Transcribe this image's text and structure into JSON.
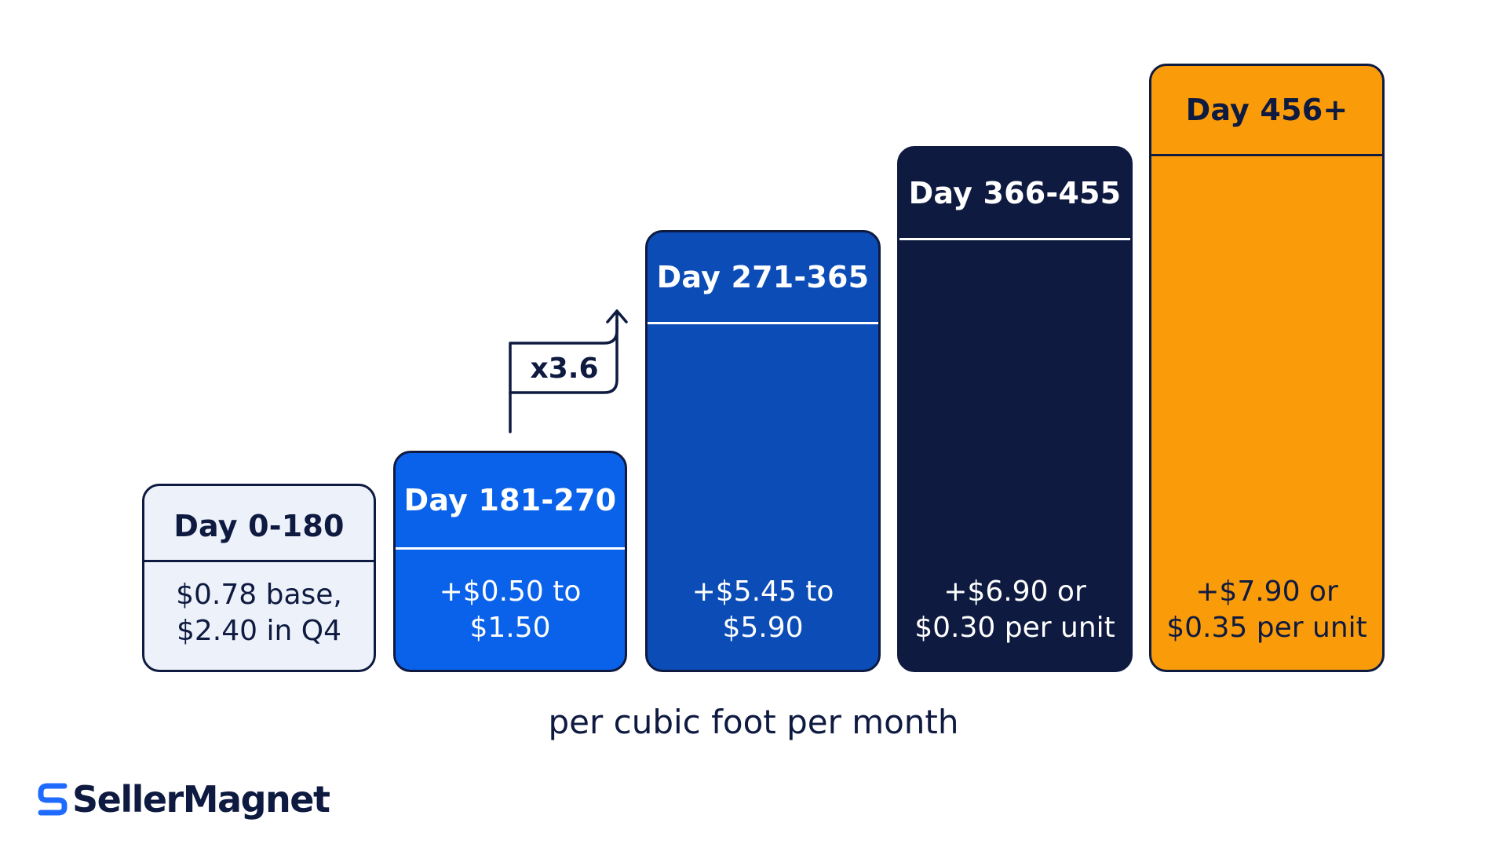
{
  "chart_data": {
    "type": "bar",
    "categories": [
      "Day 0-180",
      "Day 181-270",
      "Day 271-365",
      "Day 366-455",
      "Day 456+"
    ],
    "values": [
      [
        "$0.78 base,",
        "$2.40 in Q4"
      ],
      [
        "+$0.50 to",
        "$1.50"
      ],
      [
        "+$5.45 to",
        "$5.90"
      ],
      [
        "+$6.90 or",
        "$0.30 per unit"
      ],
      [
        "+$7.90 or",
        "$0.35 per unit"
      ]
    ],
    "annotation": "x3.6",
    "footnote": "per cubic foot per month",
    "colors": [
      "#edf1fa",
      "#0a62ea",
      "#0b4cb6",
      "#0e1a40",
      "#fa9c0a"
    ]
  },
  "brand": {
    "name": "SellerMagnet",
    "icon": "s-logo-icon",
    "color": "#1f6bff"
  }
}
